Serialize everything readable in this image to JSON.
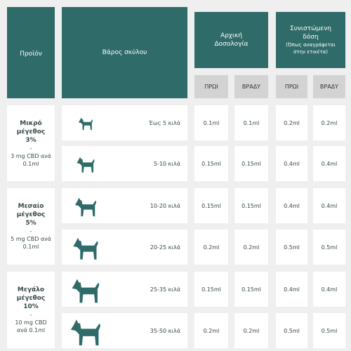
{
  "header": {
    "product": "Προϊόν",
    "weight": "Βάρος σκύλου",
    "initial_dose": "Αρχική Δοσολογία",
    "recommended_dose": "Συνιστώμενη δόση",
    "recommended_note": "(Όπως αναγράφεται στην ετικέτα)",
    "times": [
      "ΠΡΩΙ",
      "ΒΡΑΔΥ",
      "ΠΡΩΙ",
      "ΒΡΑΔΥ"
    ]
  },
  "products": [
    {
      "name": "Μικρό μέγεθος",
      "percent": "3%",
      "separator": "-",
      "concentration": "3 mg CBD ανά 0.1ml",
      "rows": [
        {
          "weight": "Έως 5 κιλά",
          "doses": [
            "0.1ml",
            "0.1ml",
            "0.2ml",
            "0.2ml"
          ]
        },
        {
          "weight": "5-10 κιλά",
          "doses": [
            "0.15ml",
            "0.15ml",
            "0.4ml",
            "0.4ml"
          ]
        }
      ]
    },
    {
      "name": "Μεσαίο μέγεθος",
      "percent": "5%",
      "separator": "-",
      "concentration": "5 mg CBD ανά 0.1ml",
      "rows": [
        {
          "weight": "10-20 κιλά",
          "doses": [
            "0.15ml",
            "0.15ml",
            "0.4ml",
            "0.4ml"
          ]
        },
        {
          "weight": "20-25 κιλά",
          "doses": [
            "0.2ml",
            "0.2ml",
            "0.5ml",
            "0.5ml"
          ]
        }
      ]
    },
    {
      "name": "Μεγάλο μέγεθος",
      "percent": "10%",
      "separator": "-",
      "concentration": "10 mg CBD ανά 0.1ml",
      "rows": [
        {
          "weight": "25-35 κιλά",
          "doses": [
            "0.15ml",
            "0.15ml",
            "0.4ml",
            "0.4ml"
          ]
        },
        {
          "weight": "35-50 κιλά",
          "doses": [
            "0.2ml",
            "0.2ml",
            "0.5ml",
            "0.5ml"
          ]
        }
      ]
    }
  ]
}
